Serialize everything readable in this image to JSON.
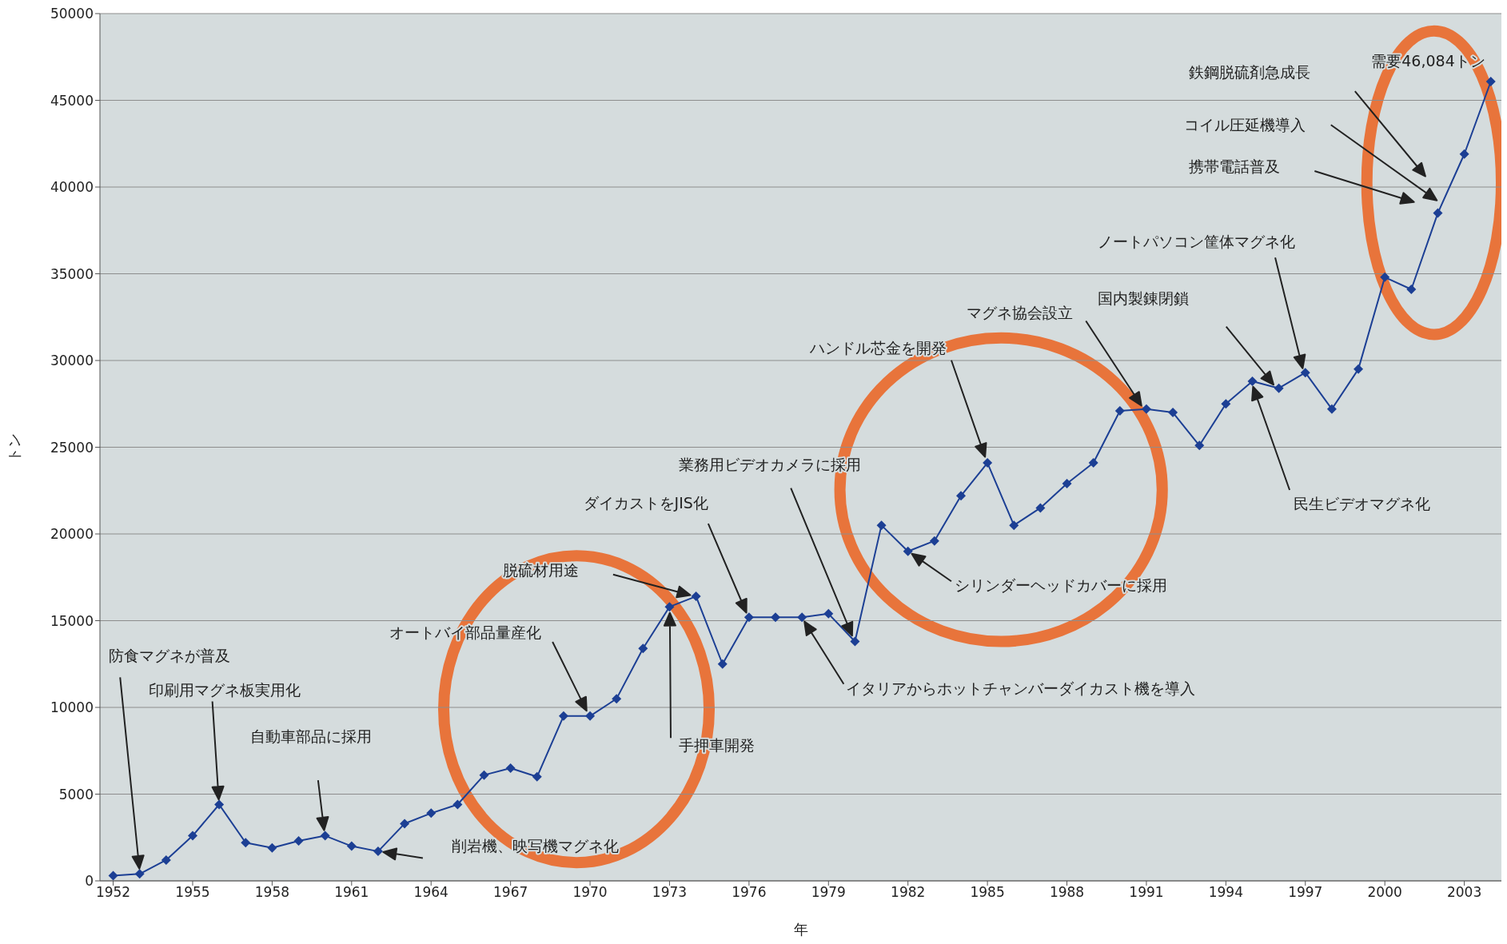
{
  "chart_data": {
    "type": "line",
    "xlabel": "年",
    "ylabel": "トン",
    "x": [
      1952,
      1953,
      1954,
      1955,
      1956,
      1957,
      1958,
      1959,
      1960,
      1961,
      1962,
      1963,
      1964,
      1965,
      1966,
      1967,
      1968,
      1969,
      1970,
      1971,
      1972,
      1973,
      1974,
      1975,
      1976,
      1977,
      1978,
      1979,
      1980,
      1981,
      1982,
      1983,
      1984,
      1985,
      1986,
      1987,
      1988,
      1989,
      1990,
      1991,
      1992,
      1993,
      1994,
      1995,
      1996,
      1997,
      1998,
      1999,
      2000,
      2001,
      2002,
      2003,
      2004
    ],
    "series": [
      {
        "color": "#1c3f94",
        "values": [
          300,
          400,
          1200,
          2600,
          4400,
          2200,
          1900,
          2300,
          2600,
          2000,
          1700,
          3300,
          3900,
          4400,
          6100,
          6500,
          6000,
          9500,
          9500,
          10500,
          13400,
          15800,
          16400,
          12500,
          15200,
          15200,
          15200,
          15400,
          13800,
          20500,
          19000,
          19600,
          22200,
          24100,
          20500,
          21500,
          22900,
          24100,
          27100,
          27200,
          27000,
          25100,
          27500,
          28800,
          28400,
          29300,
          27200,
          29500,
          34800,
          34100,
          38500,
          41900,
          46084
        ]
      }
    ],
    "xlim": [
      1951.5,
      2004.4
    ],
    "xticks": [
      1952,
      1955,
      1958,
      1961,
      1964,
      1967,
      1970,
      1973,
      1976,
      1979,
      1982,
      1985,
      1988,
      1991,
      1994,
      1997,
      2000,
      2003
    ],
    "ylim": [
      0,
      50000
    ],
    "yticks": [
      0,
      5000,
      10000,
      15000,
      20000,
      25000,
      30000,
      35000,
      40000,
      45000,
      50000
    ],
    "grid": "y",
    "marker": "diamond",
    "line_style": "solid",
    "annotations": [
      "防食マグネが普及",
      "印刷用マグネ板実用化",
      "自動車部品に採用",
      "削岩機、映写機マグネ化",
      "オートバイ部品量産化",
      "脱硫材用途",
      "手押車開発",
      "ダイカストをJIS化",
      "業務用ビデオカメラに採用",
      "イタリアからホットチャンバーダイカスト機を導入",
      "ハンドル芯金を開発",
      "シリンダーヘッドカバーに採用",
      "マグネ協会設立",
      "国内製錬閉鎖",
      "ノートパソコン筐体マグネ化",
      "民生ビデオマグネ化",
      "鉄鋼脱硫剤急成長",
      "コイル圧延機導入",
      "携帯電話普及",
      "需要46,084トン"
    ]
  }
}
